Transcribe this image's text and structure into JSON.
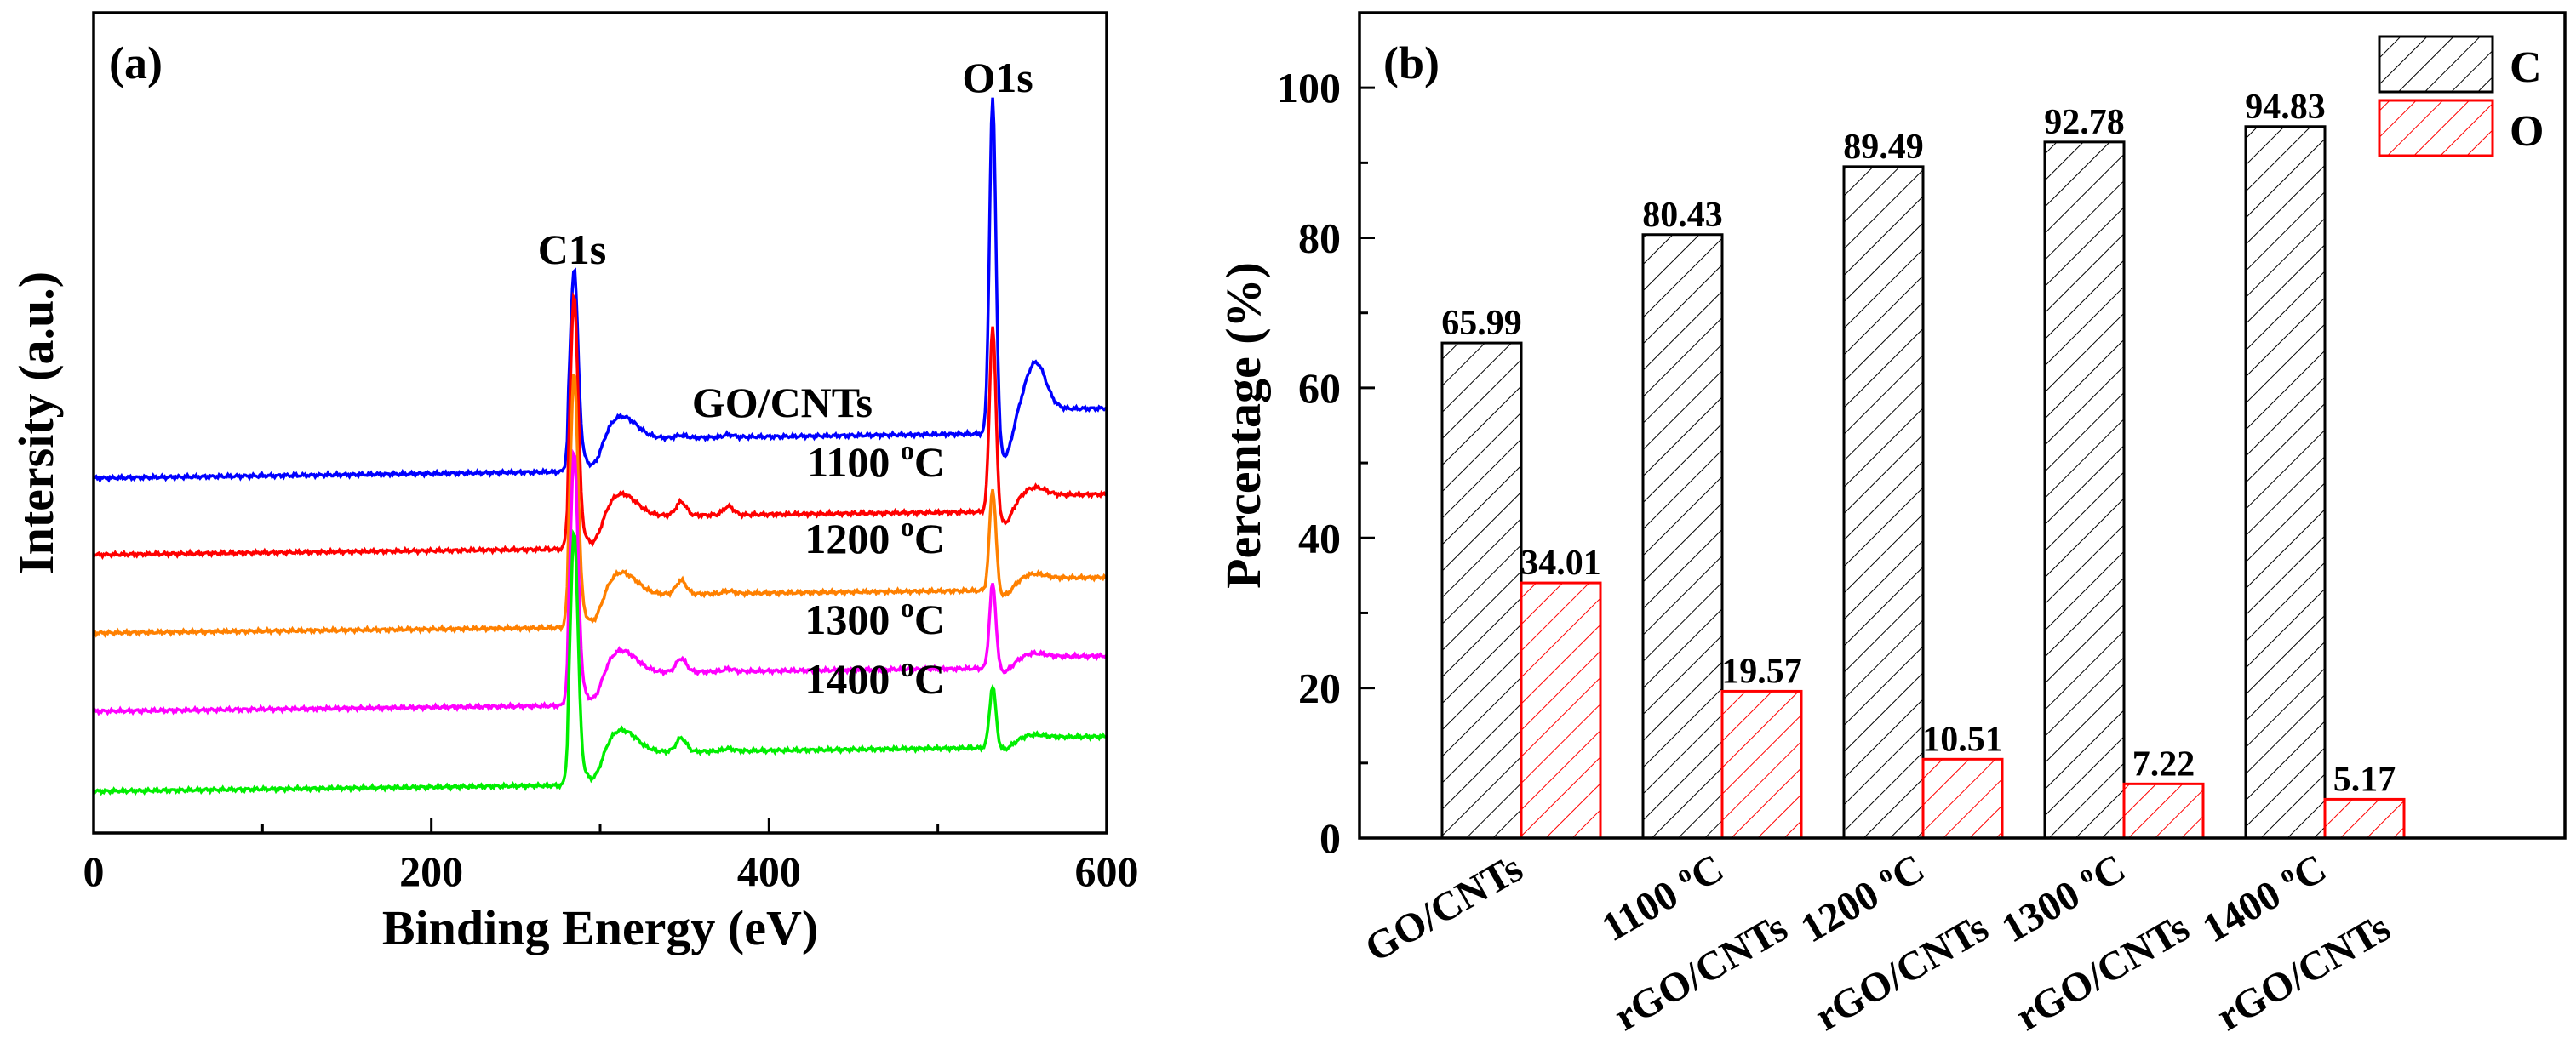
{
  "chart_data": [
    {
      "type": "line",
      "panel_label": "(a)",
      "xlabel": "Binding Energy (eV)",
      "ylabel": "Intersity (a.u.)",
      "xlim": [
        0,
        600
      ],
      "x_ticks": [
        "0",
        "200",
        "400",
        "600"
      ],
      "y_ticks_shown": false,
      "peak_labels": [
        "C1s",
        "O1s"
      ],
      "series": [
        {
          "name": "GO/CNTs",
          "color": "#0000ff",
          "offset": 4,
          "c1s": 1.0,
          "o1s": 1.0
        },
        {
          "name": "1100 °C",
          "color": "#ff0000",
          "offset": 3,
          "c1s": 1.0,
          "o1s": 0.55
        },
        {
          "name": "1200 °C",
          "color": "#ff8000",
          "offset": 2,
          "c1s": 1.0,
          "o1s": 0.3
        },
        {
          "name": "1300 °C",
          "color": "#ff00ff",
          "offset": 1,
          "c1s": 1.0,
          "o1s": 0.25
        },
        {
          "name": "1400 °C",
          "color": "#00ee00",
          "offset": 0,
          "c1s": 1.0,
          "o1s": 0.18
        }
      ],
      "series_labels": [
        {
          "text": "GO/CNTs",
          "sup": ""
        },
        {
          "text": "1100 ",
          "sup": "o",
          "unit": "C"
        },
        {
          "text": "1200 ",
          "sup": "o",
          "unit": "C"
        },
        {
          "text": "1300 ",
          "sup": "o",
          "unit": "C"
        },
        {
          "text": "1400 ",
          "sup": "o",
          "unit": "C"
        }
      ]
    },
    {
      "type": "bar",
      "panel_label": "(b)",
      "ylabel": "Percentage (%)",
      "ylim": [
        0,
        110
      ],
      "y_ticks": [
        0,
        20,
        40,
        60,
        80,
        100
      ],
      "categories": [
        {
          "line1": "GO/CNTs",
          "line2": ""
        },
        {
          "line1": "1100 °C",
          "line2": "rGO/CNTs"
        },
        {
          "line1": "1200 °C",
          "line2": "rGO/CNTs"
        },
        {
          "line1": "1300 °C",
          "line2": "rGO/CNTs"
        },
        {
          "line1": "1400 °C",
          "line2": "rGO/CNTs"
        }
      ],
      "series": [
        {
          "name": "C",
          "color": "#000000",
          "values": [
            65.99,
            80.43,
            89.49,
            92.78,
            94.83
          ],
          "labels": [
            "65.99",
            "80.43",
            "89.49",
            "92.78",
            "94.83"
          ]
        },
        {
          "name": "O",
          "color": "#ff0000",
          "values": [
            34.01,
            19.57,
            10.51,
            7.22,
            5.17
          ],
          "labels": [
            "34.01",
            "19.57",
            "10.51",
            "7.22",
            "5.17"
          ]
        }
      ],
      "legend": "top-right"
    }
  ]
}
